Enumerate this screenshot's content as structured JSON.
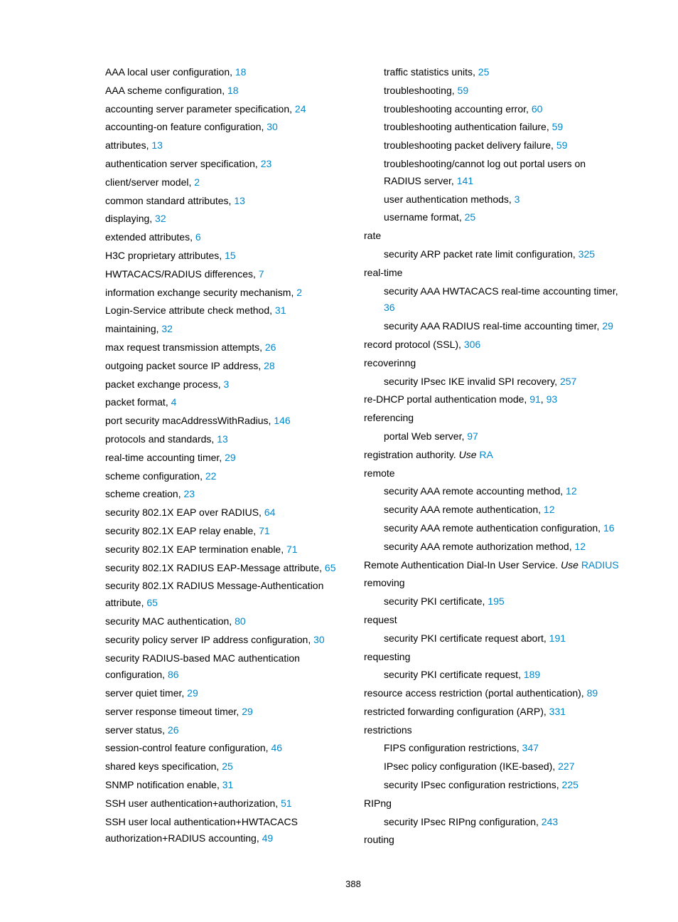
{
  "page_number": "388",
  "colors": {
    "link": "#0088cc",
    "text": "#000000",
    "bg": "#ffffff"
  },
  "columns": [
    {
      "groups": [
        {
          "heading": null,
          "indent": true,
          "items": [
            {
              "text": "AAA local user configuration, ",
              "page": "18"
            },
            {
              "text": "AAA scheme configuration, ",
              "page": "18"
            },
            {
              "text": "accounting server parameter specification, ",
              "page": "24"
            },
            {
              "text": "accounting-on feature configuration, ",
              "page": "30"
            },
            {
              "text": "attributes, ",
              "page": "13"
            },
            {
              "text": "authentication server specification, ",
              "page": "23"
            },
            {
              "text": "client/server model, ",
              "page": "2"
            },
            {
              "text": "common standard attributes, ",
              "page": "13"
            },
            {
              "text": "displaying, ",
              "page": "32"
            },
            {
              "text": "extended attributes, ",
              "page": "6"
            },
            {
              "text": "H3C proprietary attributes, ",
              "page": "15"
            },
            {
              "text": "HWTACACS/RADIUS differences, ",
              "page": "7"
            },
            {
              "text": "information exchange security mechanism, ",
              "page": "2"
            },
            {
              "text": "Login-Service attribute check method, ",
              "page": "31"
            },
            {
              "text": "maintaining, ",
              "page": "32"
            },
            {
              "text": "max request transmission attempts, ",
              "page": "26"
            },
            {
              "text": "outgoing packet source IP address, ",
              "page": "28"
            },
            {
              "text": "packet exchange process, ",
              "page": "3"
            },
            {
              "text": "packet format, ",
              "page": "4"
            },
            {
              "text": "port security macAddressWithRadius, ",
              "page": "146"
            },
            {
              "text": "protocols and standards, ",
              "page": "13"
            },
            {
              "text": "real-time accounting timer, ",
              "page": "29"
            },
            {
              "text": "scheme configuration, ",
              "page": "22"
            },
            {
              "text": "scheme creation, ",
              "page": "23"
            },
            {
              "text": "security 802.1X EAP over RADIUS, ",
              "page": "64"
            },
            {
              "text": "security 802.1X EAP relay enable, ",
              "page": "71"
            },
            {
              "text": "security 802.1X EAP termination enable, ",
              "page": "71"
            },
            {
              "text": "security 802.1X RADIUS EAP-Message attribute, ",
              "page": "65"
            },
            {
              "text": "security 802.1X RADIUS Message-Authentication attribute, ",
              "page": "65"
            },
            {
              "text": "security MAC authentication, ",
              "page": "80"
            },
            {
              "text": "security policy server IP address configuration, ",
              "page": "30"
            },
            {
              "text": "security RADIUS-based MAC authentication configuration, ",
              "page": "86"
            },
            {
              "text": "server quiet timer, ",
              "page": "29"
            },
            {
              "text": "server response timeout timer, ",
              "page": "29"
            },
            {
              "text": "server status, ",
              "page": "26"
            },
            {
              "text": "session-control feature configuration, ",
              "page": "46"
            },
            {
              "text": "shared keys specification, ",
              "page": "25"
            },
            {
              "text": "SNMP notification enable, ",
              "page": "31"
            },
            {
              "text": "SSH user authentication+authorization, ",
              "page": "51"
            },
            {
              "text": "SSH user local authentication+HWTACACS authorization+RADIUS accounting, ",
              "page": "49"
            }
          ]
        }
      ]
    },
    {
      "groups": [
        {
          "heading": null,
          "indent": true,
          "items": [
            {
              "text": "traffic statistics units, ",
              "page": "25"
            },
            {
              "text": "troubleshooting, ",
              "page": "59"
            },
            {
              "text": "troubleshooting accounting error, ",
              "page": "60"
            },
            {
              "text": "troubleshooting authentication failure, ",
              "page": "59"
            },
            {
              "text": "troubleshooting packet delivery failure, ",
              "page": "59"
            },
            {
              "text": "troubleshooting/cannot log out portal users on RADIUS server, ",
              "page": "141"
            },
            {
              "text": "user authentication methods, ",
              "page": "3"
            },
            {
              "text": "username format, ",
              "page": "25"
            }
          ]
        },
        {
          "heading": "rate",
          "indent": true,
          "items": [
            {
              "text": "security ARP packet rate limit configuration, ",
              "page": "325"
            }
          ]
        },
        {
          "heading": "real-time",
          "indent": true,
          "items": [
            {
              "text": "security AAA HWTACACS real-time accounting timer, ",
              "page": "36"
            },
            {
              "text": "security AAA RADIUS real-time accounting timer, ",
              "page": "29"
            }
          ]
        },
        {
          "heading_entry": {
            "text": "record protocol (SSL), ",
            "page": "306"
          }
        },
        {
          "heading": "recoverinng",
          "indent": true,
          "items": [
            {
              "text": "security IPsec IKE invalid SPI recovery, ",
              "page": "257"
            }
          ]
        },
        {
          "heading_entry": {
            "text": "re-DHCP portal authentication mode, ",
            "pages": [
              "91",
              "93"
            ]
          }
        },
        {
          "heading": "referencing",
          "indent": true,
          "items": [
            {
              "text": "portal Web server, ",
              "page": "97"
            }
          ]
        },
        {
          "heading_xref": {
            "text": "registration authority. ",
            "use": "Use ",
            "ref": "RA"
          }
        },
        {
          "heading": "remote",
          "indent": true,
          "items": [
            {
              "text": "security AAA remote accounting method, ",
              "page": "12"
            },
            {
              "text": "security AAA remote authentication, ",
              "page": "12"
            },
            {
              "text": "security AAA remote authentication configuration, ",
              "page": "16"
            },
            {
              "text": "security AAA remote authorization method, ",
              "page": "12"
            }
          ]
        },
        {
          "heading_xref": {
            "text": "Remote Authentication Dial-In User Service. ",
            "use": "Use ",
            "ref": "RADIUS"
          }
        },
        {
          "heading": "removing",
          "indent": true,
          "items": [
            {
              "text": "security PKI certificate, ",
              "page": "195"
            }
          ]
        },
        {
          "heading": "request",
          "indent": true,
          "items": [
            {
              "text": "security PKI certificate request abort, ",
              "page": "191"
            }
          ]
        },
        {
          "heading": "requesting",
          "indent": true,
          "items": [
            {
              "text": "security PKI certificate request, ",
              "page": "189"
            }
          ]
        },
        {
          "heading_entry": {
            "text": "resource access restriction (portal authentication), ",
            "page": "89"
          }
        },
        {
          "heading_entry": {
            "text": "restricted forwarding configuration (ARP), ",
            "page": "331"
          }
        },
        {
          "heading": "restrictions",
          "indent": true,
          "items": [
            {
              "text": "FIPS configuration restrictions, ",
              "page": "347"
            },
            {
              "text": "IPsec policy configuration (IKE-based), ",
              "page": "227"
            },
            {
              "text": "security IPsec configuration restrictions, ",
              "page": "225"
            }
          ]
        },
        {
          "heading": "RIPng",
          "indent": true,
          "items": [
            {
              "text": "security IPsec RIPng configuration, ",
              "page": "243"
            }
          ]
        },
        {
          "heading": "routing"
        }
      ]
    }
  ]
}
